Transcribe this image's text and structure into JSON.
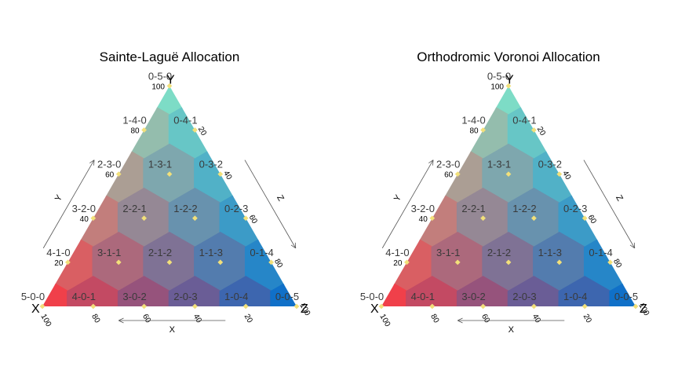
{
  "figure": {
    "background": "#ffffff",
    "corner_colors": {
      "x": "#f0404a",
      "y": "#7ddcc6",
      "z": "#1070c8"
    },
    "point_color": "#f2e07a"
  },
  "chart_data": [
    {
      "type": "ternary",
      "title": "Sainte-Laguë Allocation",
      "corner_labels": {
        "x": "X",
        "y": "Y",
        "z": "Z"
      },
      "axis_labels": {
        "x": "X",
        "y": "Y",
        "z": "Z"
      },
      "ticks": [
        20,
        40,
        60,
        80,
        100
      ],
      "seats_total": 5,
      "points": [
        {
          "label": "0-5-0",
          "x": 0,
          "y": 100,
          "z": 0
        },
        {
          "label": "1-4-0",
          "x": 20,
          "y": 80,
          "z": 0
        },
        {
          "label": "0-4-1",
          "x": 0,
          "y": 80,
          "z": 20
        },
        {
          "label": "2-3-0",
          "x": 40,
          "y": 60,
          "z": 0
        },
        {
          "label": "1-3-1",
          "x": 20,
          "y": 60,
          "z": 20
        },
        {
          "label": "0-3-2",
          "x": 0,
          "y": 60,
          "z": 40
        },
        {
          "label": "3-2-0",
          "x": 60,
          "y": 40,
          "z": 0
        },
        {
          "label": "2-2-1",
          "x": 40,
          "y": 40,
          "z": 20
        },
        {
          "label": "1-2-2",
          "x": 20,
          "y": 40,
          "z": 40
        },
        {
          "label": "0-2-3",
          "x": 0,
          "y": 40,
          "z": 60
        },
        {
          "label": "4-1-0",
          "x": 80,
          "y": 20,
          "z": 0
        },
        {
          "label": "3-1-1",
          "x": 60,
          "y": 20,
          "z": 20
        },
        {
          "label": "2-1-2",
          "x": 40,
          "y": 20,
          "z": 40
        },
        {
          "label": "1-1-3",
          "x": 20,
          "y": 20,
          "z": 60
        },
        {
          "label": "0-1-4",
          "x": 0,
          "y": 20,
          "z": 80
        },
        {
          "label": "5-0-0",
          "x": 100,
          "y": 0,
          "z": 0
        },
        {
          "label": "4-0-1",
          "x": 80,
          "y": 0,
          "z": 20
        },
        {
          "label": "3-0-2",
          "x": 60,
          "y": 0,
          "z": 40
        },
        {
          "label": "2-0-3",
          "x": 40,
          "y": 0,
          "z": 60
        },
        {
          "label": "1-0-4",
          "x": 20,
          "y": 0,
          "z": 80
        },
        {
          "label": "0-0-5",
          "x": 0,
          "y": 0,
          "z": 100
        }
      ]
    },
    {
      "type": "ternary",
      "title": "Orthodromic Voronoi Allocation",
      "corner_labels": {
        "x": "X",
        "y": "Y",
        "z": "Z"
      },
      "axis_labels": {
        "x": "X",
        "y": "Y",
        "z": "Z"
      },
      "ticks": [
        20,
        40,
        60,
        80,
        100
      ],
      "seats_total": 5,
      "points": [
        {
          "label": "0-5-0",
          "x": 0,
          "y": 100,
          "z": 0
        },
        {
          "label": "1-4-0",
          "x": 20,
          "y": 80,
          "z": 0
        },
        {
          "label": "0-4-1",
          "x": 0,
          "y": 80,
          "z": 20
        },
        {
          "label": "2-3-0",
          "x": 40,
          "y": 60,
          "z": 0
        },
        {
          "label": "1-3-1",
          "x": 20,
          "y": 60,
          "z": 20
        },
        {
          "label": "0-3-2",
          "x": 0,
          "y": 60,
          "z": 40
        },
        {
          "label": "3-2-0",
          "x": 60,
          "y": 40,
          "z": 0
        },
        {
          "label": "2-2-1",
          "x": 40,
          "y": 40,
          "z": 20
        },
        {
          "label": "1-2-2",
          "x": 20,
          "y": 40,
          "z": 40
        },
        {
          "label": "0-2-3",
          "x": 0,
          "y": 40,
          "z": 60
        },
        {
          "label": "4-1-0",
          "x": 80,
          "y": 20,
          "z": 0
        },
        {
          "label": "3-1-1",
          "x": 60,
          "y": 20,
          "z": 20
        },
        {
          "label": "2-1-2",
          "x": 40,
          "y": 20,
          "z": 40
        },
        {
          "label": "1-1-3",
          "x": 20,
          "y": 20,
          "z": 60
        },
        {
          "label": "0-1-4",
          "x": 0,
          "y": 20,
          "z": 80
        },
        {
          "label": "5-0-0",
          "x": 100,
          "y": 0,
          "z": 0
        },
        {
          "label": "4-0-1",
          "x": 80,
          "y": 0,
          "z": 20
        },
        {
          "label": "3-0-2",
          "x": 60,
          "y": 0,
          "z": 40
        },
        {
          "label": "2-0-3",
          "x": 40,
          "y": 0,
          "z": 60
        },
        {
          "label": "1-0-4",
          "x": 20,
          "y": 0,
          "z": 80
        },
        {
          "label": "0-0-5",
          "x": 0,
          "y": 0,
          "z": 100
        }
      ]
    }
  ]
}
